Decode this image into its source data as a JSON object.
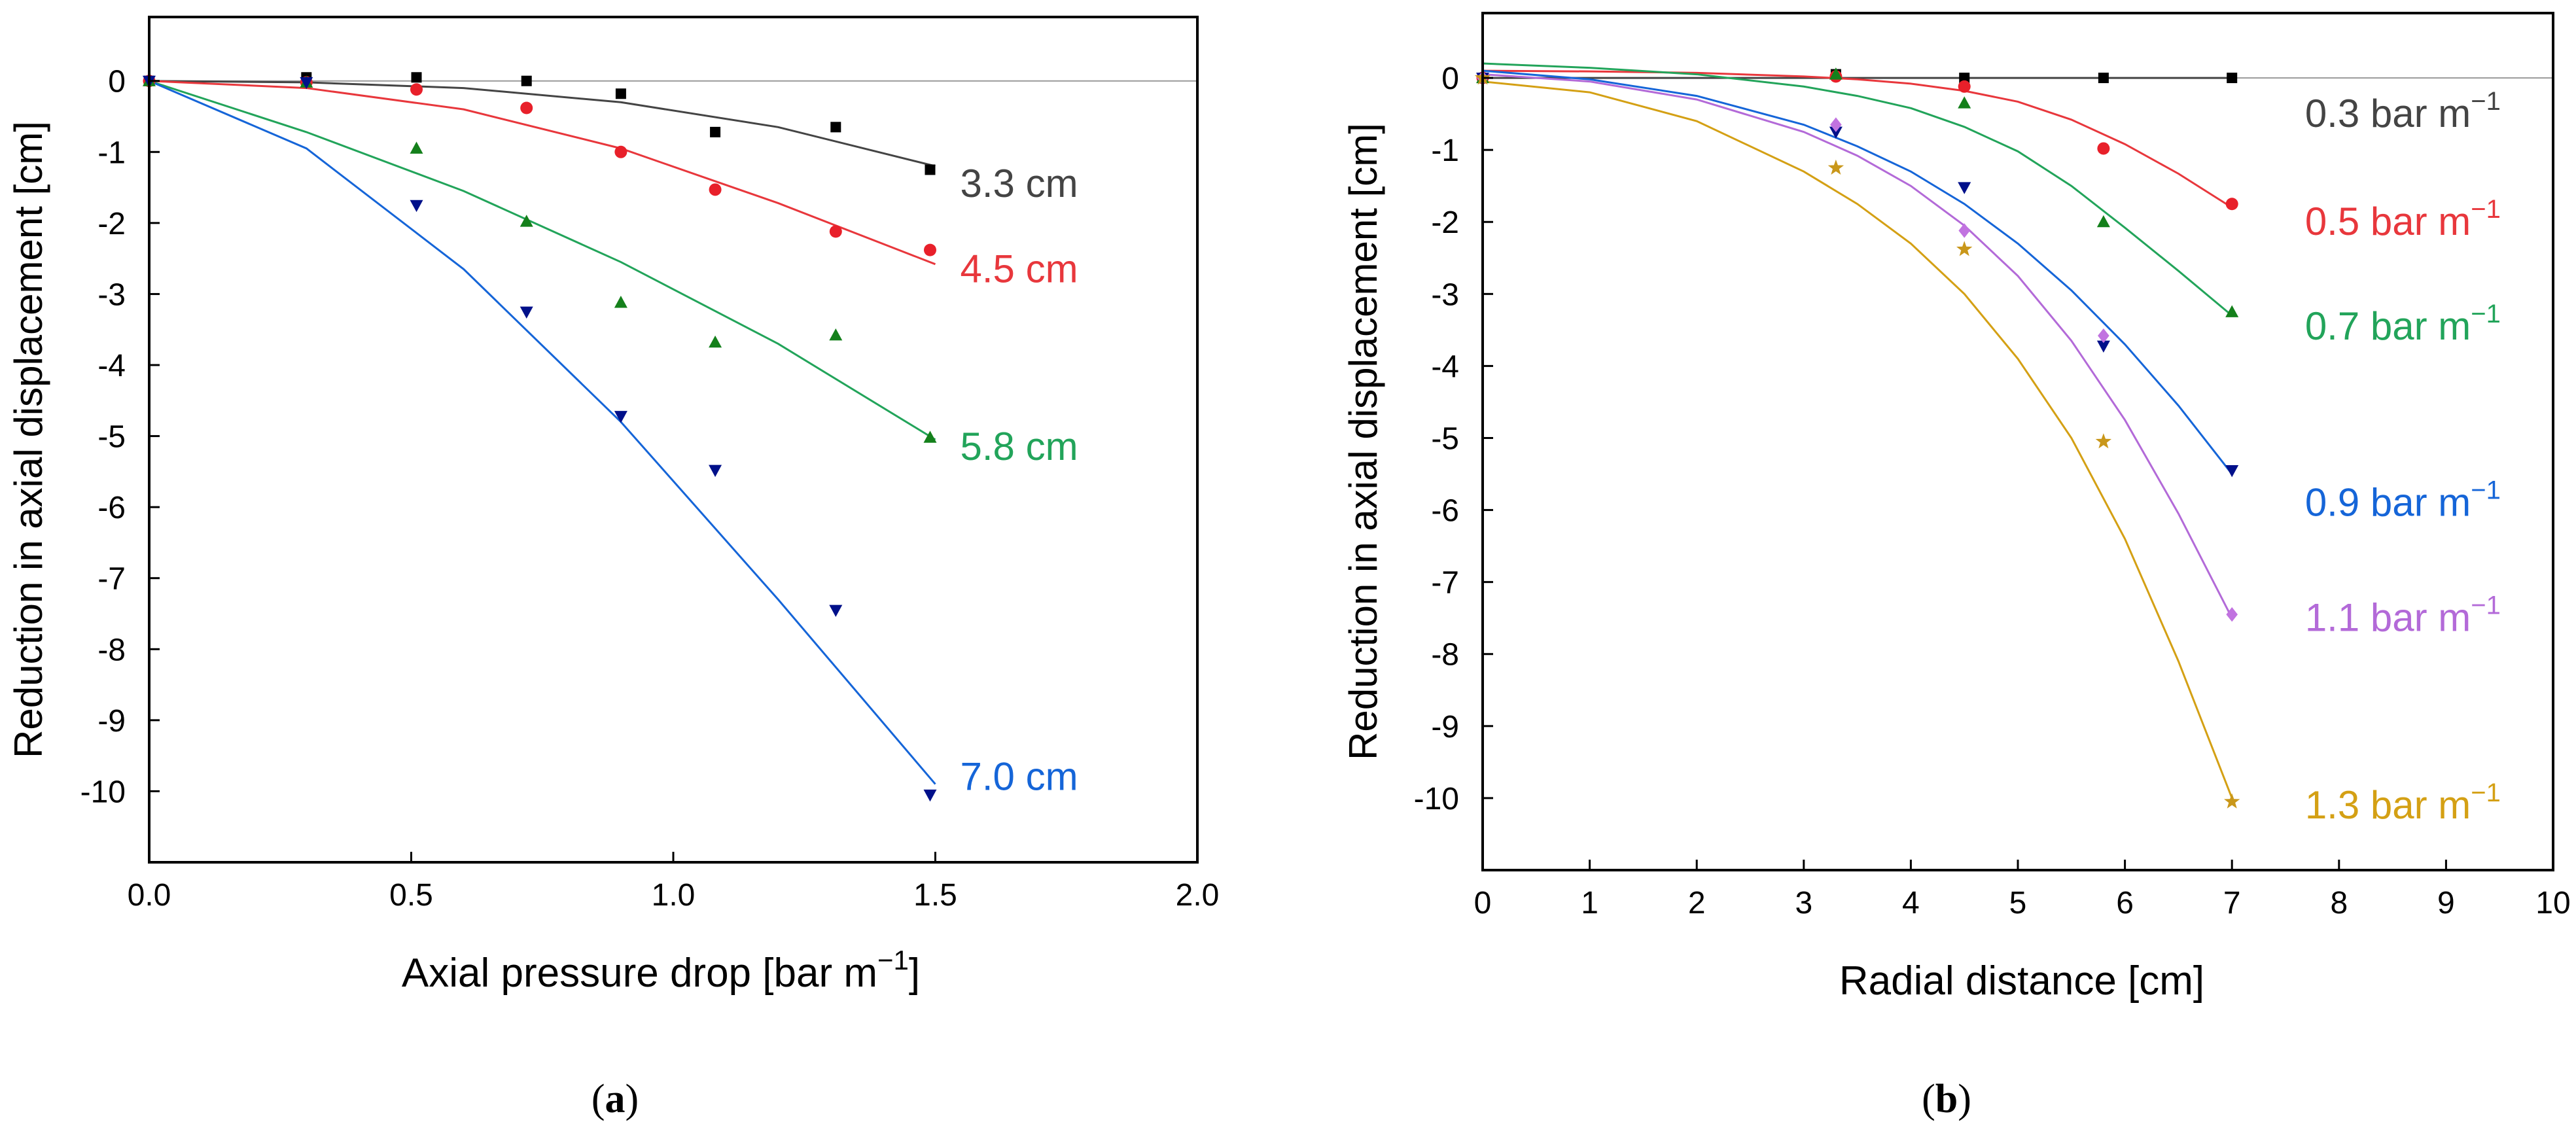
{
  "chart_data": [
    {
      "type": "scatter",
      "panel_label": "a",
      "xlabel": "Axial pressure drop [bar m",
      "xlabel_sup": "−1",
      "xlabel_close": "]",
      "ylabel": "Reduction in axial displacement [cm]",
      "xlim": [
        0.0,
        2.0
      ],
      "ylim": [
        -11.0,
        0.9
      ],
      "xticks": [
        0.0,
        0.5,
        1.0,
        1.5,
        2.0
      ],
      "xtick_labels": [
        "0.0",
        "0.5",
        "1.0",
        "1.5",
        "2.0"
      ],
      "yticks": [
        0,
        -1,
        -2,
        -3,
        -4,
        -5,
        -6,
        -7,
        -8,
        -9,
        -10
      ],
      "ytick_labels": [
        "0",
        "-1",
        "-2",
        "-3",
        "-4",
        "-5",
        "-6",
        "-7",
        "-8",
        "-9",
        "-10"
      ],
      "series": [
        {
          "name": "3.3 cm",
          "label_main": "3.3 cm",
          "label_sup": "",
          "color": "#444444",
          "point_color": "#000000",
          "marker": "square",
          "points": [
            [
              0,
              0
            ],
            [
              0.3,
              0.05
            ],
            [
              0.51,
              0.05
            ],
            [
              0.72,
              0.0
            ],
            [
              0.9,
              -0.18
            ],
            [
              1.08,
              -0.72
            ],
            [
              1.31,
              -0.65
            ],
            [
              1.49,
              -1.25
            ]
          ],
          "fit": [
            [
              0,
              0
            ],
            [
              0.3,
              -0.02
            ],
            [
              0.6,
              -0.1
            ],
            [
              0.9,
              -0.3
            ],
            [
              1.2,
              -0.65
            ],
            [
              1.5,
              -1.2
            ]
          ],
          "label_pos": [
            1.5,
            -1.45
          ]
        },
        {
          "name": "4.5 cm",
          "label_main": "4.5 cm",
          "label_sup": "",
          "color": "#e8373c",
          "point_color": "#e8202a",
          "marker": "circle",
          "points": [
            [
              0,
              0
            ],
            [
              0.3,
              -0.02
            ],
            [
              0.51,
              -0.12
            ],
            [
              0.72,
              -0.38
            ],
            [
              0.9,
              -1.0
            ],
            [
              1.08,
              -1.53
            ],
            [
              1.31,
              -2.12
            ],
            [
              1.49,
              -2.38
            ]
          ],
          "fit": [
            [
              0,
              0
            ],
            [
              0.3,
              -0.1
            ],
            [
              0.6,
              -0.4
            ],
            [
              0.9,
              -0.95
            ],
            [
              1.2,
              -1.72
            ],
            [
              1.5,
              -2.58
            ]
          ],
          "label_pos": [
            1.5,
            -2.65
          ]
        },
        {
          "name": "5.8 cm",
          "label_main": "5.8 cm",
          "label_sup": "",
          "color": "#22a45a",
          "point_color": "#14801b",
          "marker": "triangle-up",
          "points": [
            [
              0,
              0
            ],
            [
              0.3,
              -0.02
            ],
            [
              0.51,
              -0.95
            ],
            [
              0.72,
              -1.98
            ],
            [
              0.9,
              -3.12
            ],
            [
              1.08,
              -3.68
            ],
            [
              1.31,
              -3.58
            ],
            [
              1.49,
              -5.02
            ]
          ],
          "fit": [
            [
              0,
              0
            ],
            [
              0.3,
              -0.72
            ],
            [
              0.6,
              -1.55
            ],
            [
              0.9,
              -2.55
            ],
            [
              1.2,
              -3.7
            ],
            [
              1.5,
              -5.05
            ]
          ],
          "label_pos": [
            1.5,
            -5.15
          ]
        },
        {
          "name": "7.0 cm",
          "label_main": "7.0 cm",
          "label_sup": "",
          "color": "#1565d8",
          "point_color": "#00108a",
          "marker": "triangle-down",
          "points": [
            [
              0,
              0
            ],
            [
              0.3,
              -0.02
            ],
            [
              0.51,
              -1.75
            ],
            [
              0.72,
              -3.25
            ],
            [
              0.9,
              -4.72
            ],
            [
              1.08,
              -5.48
            ],
            [
              1.31,
              -7.45
            ],
            [
              1.49,
              -10.05
            ]
          ],
          "fit": [
            [
              0,
              0
            ],
            [
              0.3,
              -0.95
            ],
            [
              0.6,
              -2.65
            ],
            [
              0.9,
              -4.8
            ],
            [
              1.2,
              -7.3
            ],
            [
              1.5,
              -9.9
            ]
          ],
          "label_pos": [
            1.5,
            -9.8
          ]
        }
      ]
    },
    {
      "type": "scatter",
      "panel_label": "b",
      "xlabel": "Radial distance [cm]",
      "xlabel_sup": "",
      "xlabel_close": "",
      "ylabel": "Reduction in axial displacement [cm]",
      "xlim": [
        0,
        10
      ],
      "ylim": [
        -11.0,
        0.9
      ],
      "xticks": [
        0,
        1,
        2,
        3,
        4,
        5,
        6,
        7,
        8,
        9,
        10
      ],
      "xtick_labels": [
        "0",
        "1",
        "2",
        "3",
        "4",
        "5",
        "6",
        "7",
        "8",
        "9",
        "10"
      ],
      "yticks": [
        0,
        -1,
        -2,
        -3,
        -4,
        -5,
        -6,
        -7,
        -8,
        -9,
        -10
      ],
      "ytick_labels": [
        "0",
        "-1",
        "-2",
        "-3",
        "-4",
        "-5",
        "-6",
        "-7",
        "-8",
        "-9",
        "-10"
      ],
      "series": [
        {
          "name": "0.3 bar m−1",
          "label_main": "0.3 bar m",
          "label_sup": "−1",
          "color": "#444444",
          "point_color": "#000000",
          "marker": "square",
          "points": [
            [
              0,
              0
            ],
            [
              3.3,
              0.05
            ],
            [
              4.5,
              0.0
            ],
            [
              5.8,
              0.0
            ],
            [
              7.0,
              0.0
            ]
          ],
          "fit": [
            [
              0,
              0
            ],
            [
              3.5,
              0
            ],
            [
              7.0,
              0
            ]
          ],
          "label_pos": [
            7.45,
            -0.5
          ]
        },
        {
          "name": "0.5 bar m−1",
          "label_main": "0.5 bar m",
          "label_sup": "−1",
          "color": "#e8373c",
          "point_color": "#e8202a",
          "marker": "circle",
          "points": [
            [
              0,
              0
            ],
            [
              3.3,
              0.02
            ],
            [
              4.5,
              -0.12
            ],
            [
              5.8,
              -0.98
            ],
            [
              7.0,
              -1.75
            ]
          ],
          "fit": [
            [
              0,
              0.1
            ],
            [
              1,
              0.09
            ],
            [
              2,
              0.07
            ],
            [
              3,
              0.02
            ],
            [
              3.5,
              -0.02
            ],
            [
              4,
              -0.08
            ],
            [
              4.5,
              -0.18
            ],
            [
              5,
              -0.33
            ],
            [
              5.5,
              -0.58
            ],
            [
              6,
              -0.92
            ],
            [
              6.5,
              -1.33
            ],
            [
              7.0,
              -1.8
            ]
          ],
          "label_pos": [
            7.45,
            -2.0
          ]
        },
        {
          "name": "0.7 bar m−1",
          "label_main": "0.7 bar m",
          "label_sup": "−1",
          "color": "#22a45a",
          "point_color": "#14801b",
          "marker": "triangle-up",
          "points": [
            [
              0,
              0
            ],
            [
              3.3,
              0.05
            ],
            [
              4.5,
              -0.35
            ],
            [
              5.8,
              -2.0
            ],
            [
              7.0,
              -3.25
            ]
          ],
          "fit": [
            [
              0,
              0.2
            ],
            [
              1,
              0.14
            ],
            [
              2,
              0.05
            ],
            [
              3,
              -0.12
            ],
            [
              3.5,
              -0.25
            ],
            [
              4,
              -0.42
            ],
            [
              4.5,
              -0.68
            ],
            [
              5,
              -1.02
            ],
            [
              5.5,
              -1.5
            ],
            [
              6,
              -2.08
            ],
            [
              6.5,
              -2.68
            ],
            [
              7.0,
              -3.3
            ]
          ],
          "label_pos": [
            7.45,
            -3.45
          ]
        },
        {
          "name": "0.9 bar m−1",
          "label_main": "0.9 bar m",
          "label_sup": "−1",
          "color": "#1565d8",
          "point_color": "#00108a",
          "marker": "triangle-down",
          "points": [
            [
              0,
              0
            ],
            [
              3.3,
              -0.75
            ],
            [
              4.5,
              -1.52
            ],
            [
              5.8,
              -3.72
            ],
            [
              7.0,
              -5.45
            ]
          ],
          "fit": [
            [
              0,
              0.1
            ],
            [
              1,
              -0.02
            ],
            [
              2,
              -0.25
            ],
            [
              3,
              -0.65
            ],
            [
              3.5,
              -0.95
            ],
            [
              4,
              -1.3
            ],
            [
              4.5,
              -1.75
            ],
            [
              5,
              -2.3
            ],
            [
              5.5,
              -2.95
            ],
            [
              6,
              -3.7
            ],
            [
              6.5,
              -4.55
            ],
            [
              7.0,
              -5.5
            ]
          ],
          "label_pos": [
            7.45,
            -5.9
          ]
        },
        {
          "name": "1.1 bar m−1",
          "label_main": "1.1 bar m",
          "label_sup": "−1",
          "color": "#b36ad8",
          "point_color": "#c173e0",
          "marker": "diamond",
          "points": [
            [
              0,
              0
            ],
            [
              3.3,
              -0.65
            ],
            [
              4.5,
              -2.12
            ],
            [
              5.8,
              -3.58
            ],
            [
              7.0,
              -7.45
            ]
          ],
          "fit": [
            [
              0,
              0.05
            ],
            [
              1,
              -0.05
            ],
            [
              2,
              -0.3
            ],
            [
              3,
              -0.75
            ],
            [
              3.5,
              -1.08
            ],
            [
              4,
              -1.5
            ],
            [
              4.5,
              -2.05
            ],
            [
              5,
              -2.75
            ],
            [
              5.5,
              -3.65
            ],
            [
              6,
              -4.75
            ],
            [
              6.5,
              -6.05
            ],
            [
              7.0,
              -7.5
            ]
          ],
          "label_pos": [
            7.45,
            -7.5
          ]
        },
        {
          "name": "1.3 bar m−1",
          "label_main": "1.3 bar m",
          "label_sup": "−1",
          "color": "#d4a014",
          "point_color": "#c9971a",
          "marker": "star",
          "points": [
            [
              0,
              0
            ],
            [
              3.3,
              -1.25
            ],
            [
              4.5,
              -2.38
            ],
            [
              5.8,
              -5.05
            ],
            [
              7.0,
              -10.05
            ]
          ],
          "fit": [
            [
              0,
              -0.05
            ],
            [
              1,
              -0.2
            ],
            [
              2,
              -0.6
            ],
            [
              3,
              -1.3
            ],
            [
              3.5,
              -1.75
            ],
            [
              4,
              -2.3
            ],
            [
              4.5,
              -3.0
            ],
            [
              5,
              -3.9
            ],
            [
              5.5,
              -5.0
            ],
            [
              6,
              -6.4
            ],
            [
              6.5,
              -8.1
            ],
            [
              7.0,
              -10.0
            ]
          ],
          "label_pos": [
            7.45,
            -10.1
          ]
        }
      ]
    }
  ]
}
